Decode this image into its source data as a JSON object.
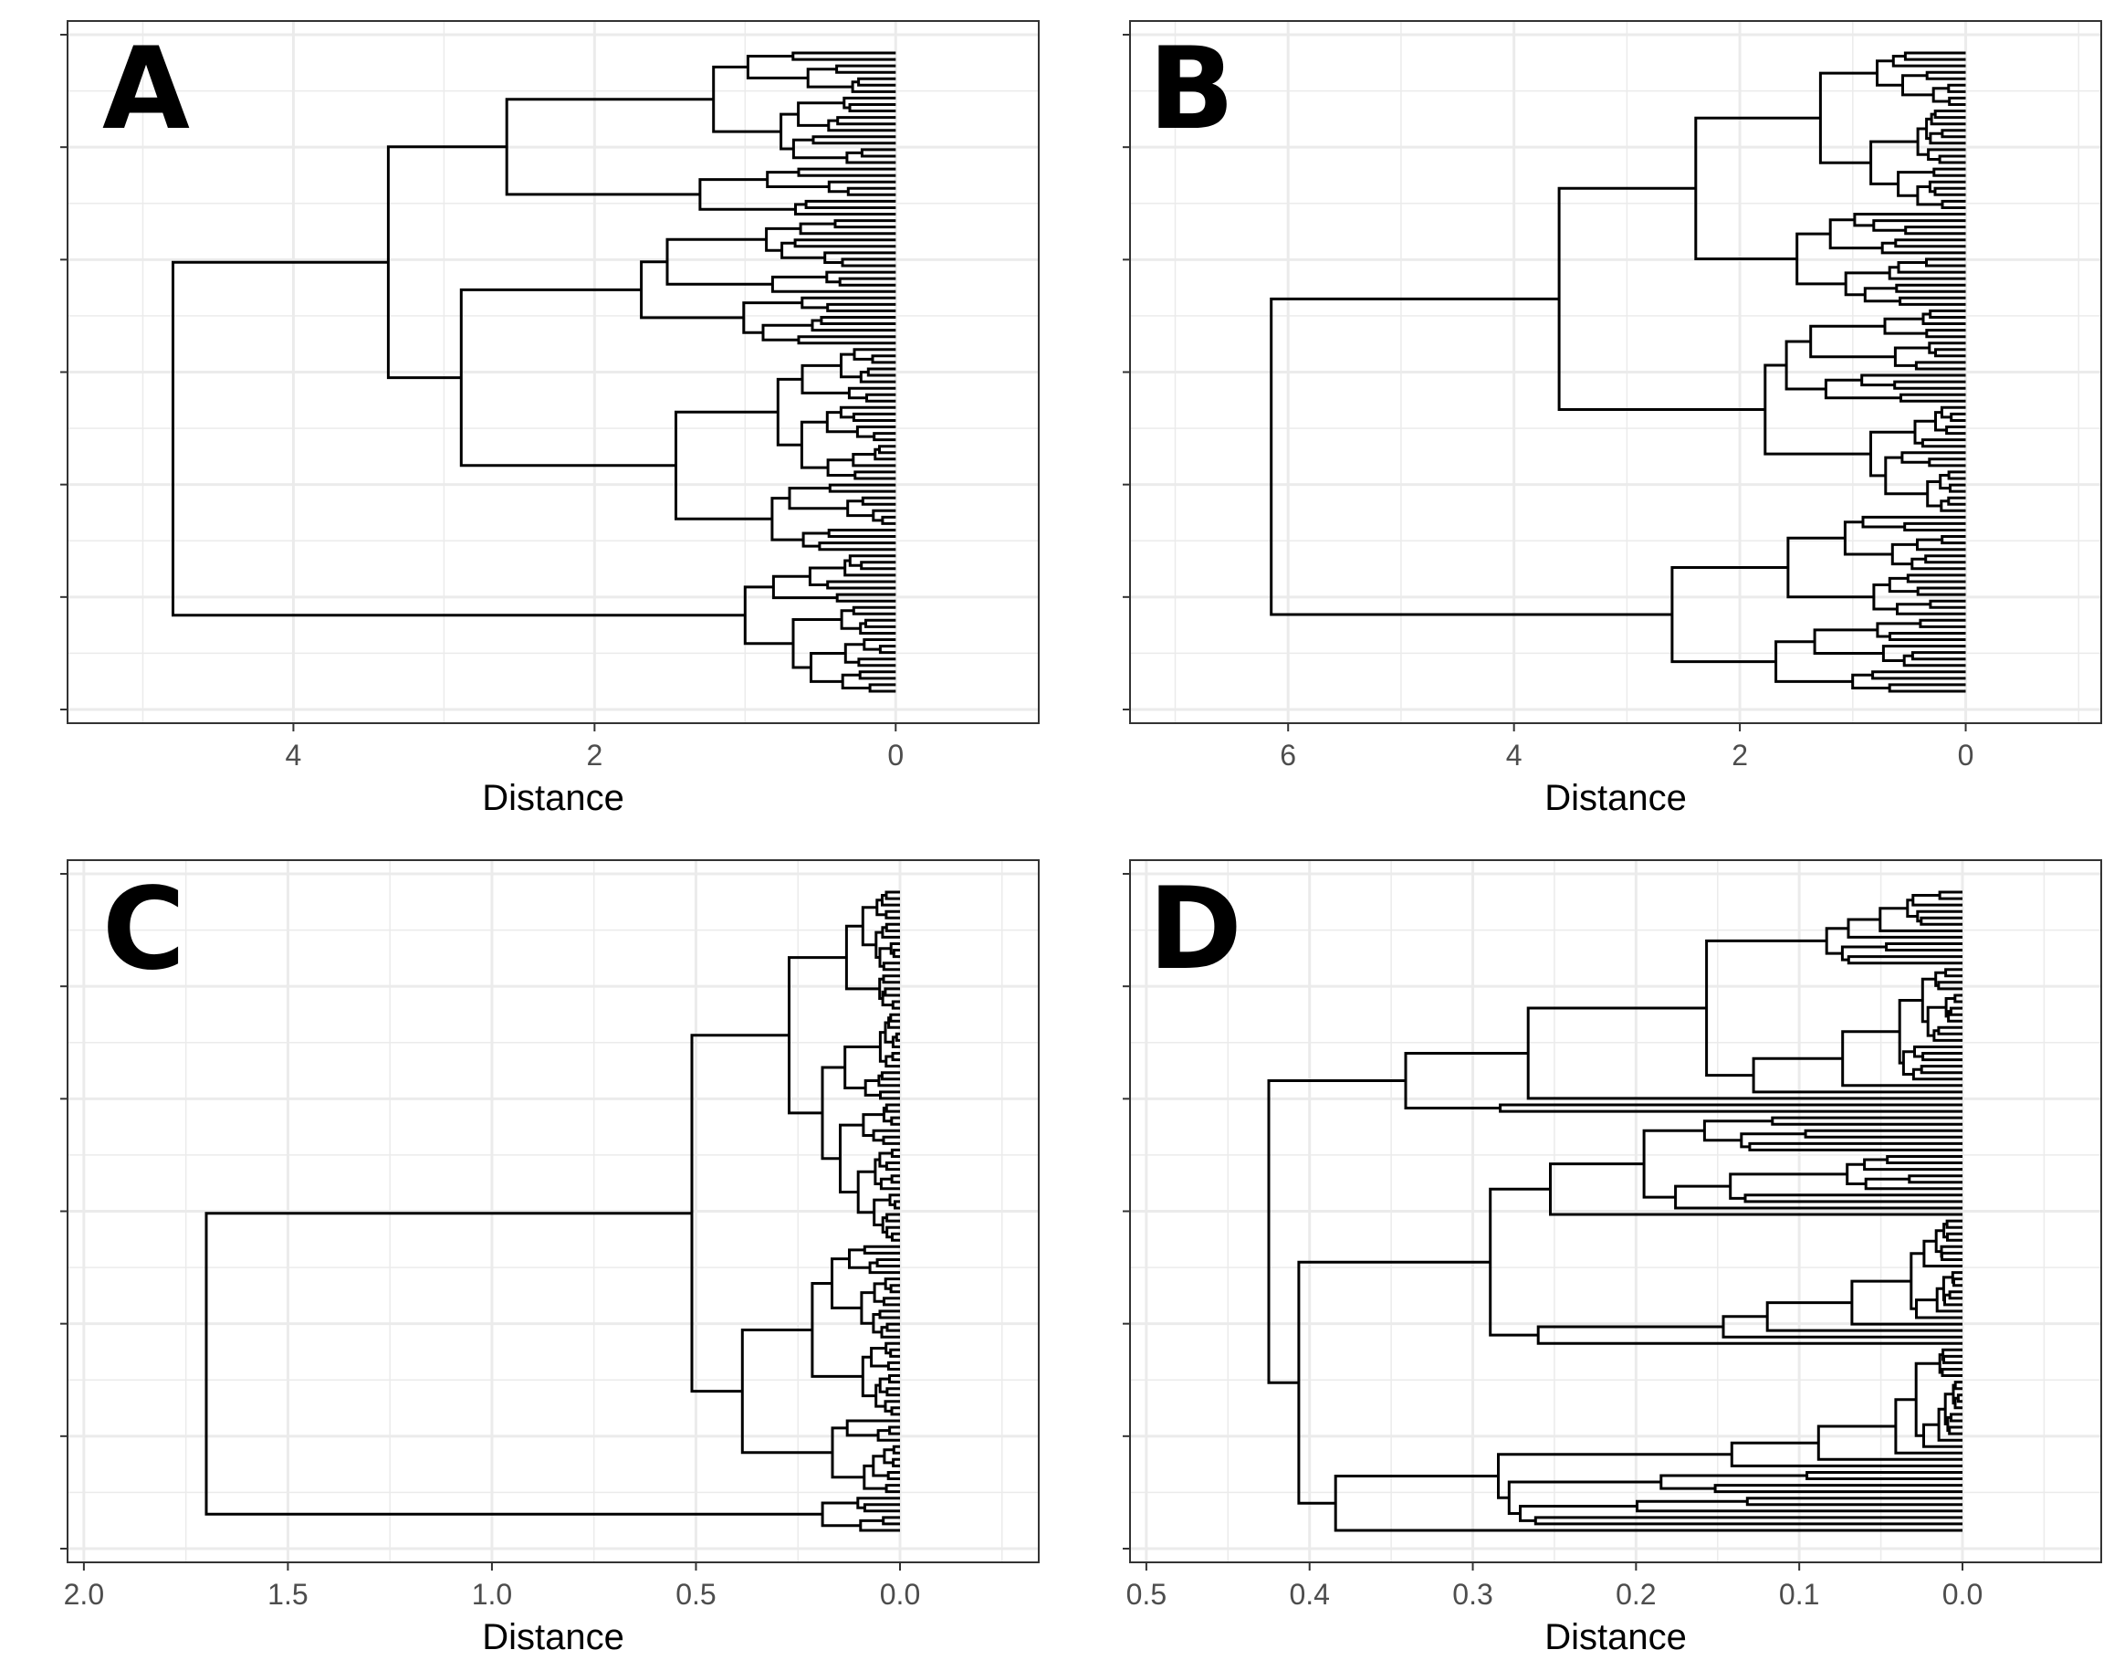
{
  "figure": {
    "panels": [
      "A",
      "B",
      "C",
      "D"
    ]
  },
  "colors": {
    "tree": "#000000",
    "grid": "#ebebeb",
    "frame": "#333333",
    "tick_text": "#4d4d4d"
  },
  "chart_data": [
    {
      "panel": "A",
      "type": "dendrogram",
      "orientation": "horizontal, leaves at right",
      "xlabel": "Distance",
      "x_ticks": [
        "4",
        "2",
        "0"
      ],
      "x_tick_values": [
        4,
        2,
        0
      ],
      "xlim": [
        5.5,
        -0.95
      ],
      "root_height": 4.8,
      "main_merge_heights": [
        4.8,
        3.37,
        2.2,
        2.08,
        1.6,
        1.5,
        1.08,
        1.05,
        1.0,
        0.9,
        0.83,
        0.75,
        0.72,
        0.55
      ],
      "leaf_count": 100,
      "grid": true,
      "y_axis": "no labels"
    },
    {
      "panel": "B",
      "type": "dendrogram",
      "orientation": "horizontal, leaves at right",
      "xlabel": "Distance",
      "x_ticks": [
        "6",
        "4",
        "2",
        "0"
      ],
      "x_tick_values": [
        6,
        4,
        2,
        0
      ],
      "xlim": [
        7.4,
        -1.2
      ],
      "root_height": 6.15,
      "main_merge_heights": [
        6.15,
        3.6,
        2.6,
        1.95,
        1.6,
        1.3,
        1.1,
        0.92,
        0.85,
        0.72,
        0.4
      ],
      "leaf_count": 100,
      "grid": true,
      "y_axis": "no labels"
    },
    {
      "panel": "C",
      "type": "dendrogram",
      "orientation": "horizontal, leaves at right",
      "xlabel": "Distance",
      "x_ticks": [
        "2.0",
        "1.5",
        "1.0",
        "0.5",
        "0.0"
      ],
      "x_tick_values": [
        2.0,
        1.5,
        1.0,
        0.5,
        0.0
      ],
      "xlim": [
        2.04,
        -0.34
      ],
      "root_height": 1.7,
      "main_merge_heights": [
        1.7,
        0.51,
        0.38,
        0.36,
        0.27,
        0.25,
        0.2,
        0.18,
        0.17,
        0.16
      ],
      "leaf_count": 100,
      "grid": true,
      "y_axis": "no labels"
    },
    {
      "panel": "D",
      "type": "dendrogram",
      "orientation": "horizontal, leaves at right",
      "xlabel": "Distance",
      "x_ticks": [
        "0.5",
        "0.4",
        "0.3",
        "0.2",
        "0.1",
        "0.0"
      ],
      "x_tick_values": [
        0.5,
        0.4,
        0.3,
        0.2,
        0.1,
        0.0
      ],
      "xlim": [
        0.51,
        -0.085
      ],
      "root_height": 0.425,
      "main_merge_heights": [
        0.425,
        0.41,
        0.39,
        0.27,
        0.25,
        0.24,
        0.22,
        0.2,
        0.195,
        0.12,
        0.11,
        0.1,
        0.09,
        0.08,
        0.075,
        0.07
      ],
      "leaf_count": 100,
      "grid": true,
      "y_axis": "no labels"
    }
  ]
}
